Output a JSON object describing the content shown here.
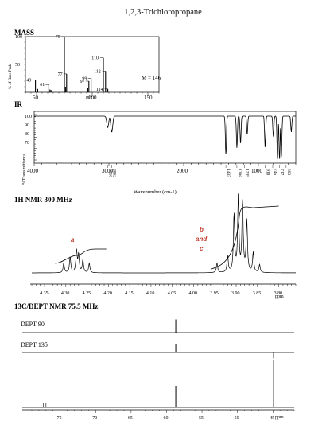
{
  "title": "1,2,3-Trichloropropane",
  "chart_data": [
    {
      "type": "bar",
      "section_label": "MASS",
      "xlabel": "m/z",
      "ylabel": "% of Base Peak",
      "xticks": [
        50,
        100,
        150
      ],
      "yticks": [
        100,
        50
      ],
      "xlim": [
        40,
        160
      ],
      "ylim": [
        0,
        100
      ],
      "molecular_ion_label": "M = 146",
      "peaks": [
        {
          "mz": 49,
          "rel": 22,
          "label": "49"
        },
        {
          "mz": 51,
          "rel": 6
        },
        {
          "mz": 61,
          "rel": 14,
          "label": "61"
        },
        {
          "mz": 62,
          "rel": 5
        },
        {
          "mz": 63,
          "rel": 4
        },
        {
          "mz": 75,
          "rel": 100,
          "label": "75"
        },
        {
          "mz": 76,
          "rel": 10
        },
        {
          "mz": 77,
          "rel": 33,
          "label": "77"
        },
        {
          "mz": 96,
          "rel": 8
        },
        {
          "mz": 97,
          "rel": 20,
          "label": "97"
        },
        {
          "mz": 99,
          "rel": 25,
          "label": "99"
        },
        {
          "mz": 110,
          "rel": 62,
          "label": "110"
        },
        {
          "mz": 112,
          "rel": 38,
          "label": "112"
        },
        {
          "mz": 114,
          "rel": 6,
          "label": "114"
        }
      ]
    },
    {
      "type": "line",
      "section_label": "IR",
      "xlabel": "Wavenumber (cm-1)",
      "ylabel": "%Transmittance",
      "xticks": [
        4000,
        3000,
        2000,
        1000
      ],
      "yticks": [
        100,
        90,
        80,
        70
      ],
      "xlim": [
        4000,
        500
      ],
      "peak_labels": [
        "3016",
        "2962",
        "1435",
        "1288",
        "1239",
        "910",
        "745",
        "717",
        "693"
      ],
      "peaks": [
        {
          "wn": 3016,
          "depth": 0.25
        },
        {
          "wn": 2962,
          "depth": 0.35
        },
        {
          "wn": 1435,
          "depth": 0.85
        },
        {
          "wn": 1288,
          "depth": 0.7
        },
        {
          "wn": 1239,
          "depth": 0.6
        },
        {
          "wn": 1150,
          "depth": 0.4
        },
        {
          "wn": 910,
          "depth": 0.7
        },
        {
          "wn": 800,
          "depth": 0.45
        },
        {
          "wn": 745,
          "depth": 0.95
        },
        {
          "wn": 717,
          "depth": 0.95
        },
        {
          "wn": 693,
          "depth": 0.9
        },
        {
          "wn": 560,
          "depth": 0.35
        }
      ]
    },
    {
      "type": "line",
      "section_label": "1H NMR 300 MHz",
      "unit": "ppm",
      "xticks": [
        "4.35",
        "4.30",
        "4.25",
        "4.20",
        "4.15",
        "4.10",
        "4.05",
        "4.00",
        "3.95",
        "3.90",
        "3.85",
        "3.80"
      ],
      "xlim": [
        4.38,
        3.76
      ],
      "annotations": [
        "a",
        "b",
        "and",
        "c"
      ],
      "peaks": [
        {
          "ppm": 4.305,
          "h": 0.12
        },
        {
          "ppm": 4.29,
          "h": 0.2
        },
        {
          "ppm": 4.275,
          "h": 0.28
        },
        {
          "ppm": 4.27,
          "h": 0.22
        },
        {
          "ppm": 4.26,
          "h": 0.16
        },
        {
          "ppm": 4.245,
          "h": 0.12
        },
        {
          "ppm": 3.945,
          "h": 0.12
        },
        {
          "ppm": 3.92,
          "h": 0.2
        },
        {
          "ppm": 3.905,
          "h": 0.72
        },
        {
          "ppm": 3.895,
          "h": 0.95
        },
        {
          "ppm": 3.885,
          "h": 0.88
        },
        {
          "ppm": 3.875,
          "h": 0.65
        },
        {
          "ppm": 3.86,
          "h": 0.25
        },
        {
          "ppm": 3.845,
          "h": 0.1
        }
      ]
    },
    {
      "type": "bar",
      "section_label": "13C/DEPT NMR 75.5 MHz",
      "unit": "ppm",
      "traces": [
        "DEPT 90",
        "DEPT 135"
      ],
      "xticks": [
        75,
        70,
        65,
        60,
        55,
        50,
        45
      ],
      "xlim": [
        79,
        42
      ],
      "carbon_peaks": [
        {
          "ppm": 58.7,
          "dept90": 0.55,
          "dept135": 0.35,
          "c13": 0.45
        },
        {
          "ppm": 44.9,
          "dept90": 0,
          "dept135": -0.25,
          "c13": 1.0
        }
      ]
    }
  ]
}
